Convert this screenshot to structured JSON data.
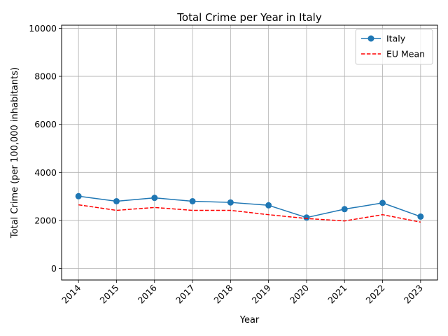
{
  "chart_data": {
    "type": "line",
    "title": "Total Crime per Year in Italy",
    "xlabel": "Year",
    "ylabel": "Total Crime (per 100,000 inhabitants)",
    "categories": [
      "2014",
      "2015",
      "2016",
      "2017",
      "2018",
      "2019",
      "2020",
      "2021",
      "2022",
      "2023"
    ],
    "ylim": [
      -480,
      10130
    ],
    "yticks": [
      0,
      2000,
      4000,
      6000,
      8000,
      10000
    ],
    "grid": true,
    "legend_position": "top-right",
    "series": [
      {
        "name": "Italy",
        "color": "#1f77b4",
        "style": "solid-with-markers",
        "values": [
          3010,
          2800,
          2940,
          2800,
          2750,
          2630,
          2120,
          2470,
          2730,
          2160
        ]
      },
      {
        "name": "EU Mean",
        "color": "#ff0000",
        "style": "dashed",
        "values": [
          2650,
          2420,
          2540,
          2420,
          2420,
          2240,
          2080,
          1980,
          2240,
          1930
        ]
      }
    ]
  }
}
